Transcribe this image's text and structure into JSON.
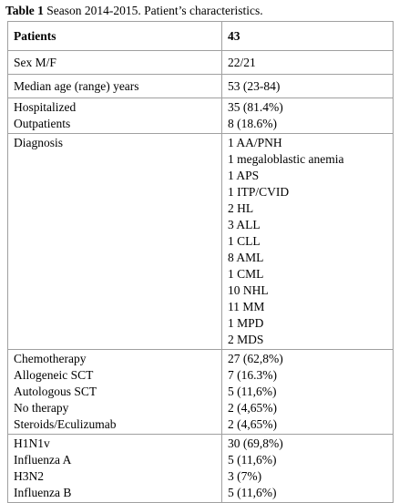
{
  "caption": {
    "label": "Table 1",
    "text": "Season 2014-2015. Patient’s characteristics."
  },
  "table": {
    "header": [
      "Patients",
      "43"
    ],
    "rows": [
      [
        [
          "Sex M/F"
        ],
        [
          "22/21"
        ]
      ],
      [
        [
          "Median age (range) years"
        ],
        [
          "53 (23-84)"
        ]
      ],
      [
        [
          "Hospitalized",
          "Outpatients"
        ],
        [
          "35 (81.4%)",
          "8 (18.6%)"
        ]
      ],
      [
        [
          "Diagnosis"
        ],
        [
          "1 AA/PNH",
          "1 megaloblastic anemia",
          "1 APS",
          "1 ITP/CVID",
          "2 HL",
          "3 ALL",
          "1 CLL",
          "8 AML",
          "1 CML",
          "10 NHL",
          "11 MM",
          "1 MPD",
          "2 MDS"
        ]
      ],
      [
        [
          "Chemotherapy",
          "Allogeneic SCT",
          "Autologous SCT",
          "No therapy",
          "Steroids/Eculizumab"
        ],
        [
          "27 (62,8%)",
          "7 (16.3%)",
          "5 (11,6%)",
          "2 (4,65%)",
          "2 (4,65%)"
        ]
      ],
      [
        [
          "H1N1v",
          "Influenza A",
          "H3N2",
          "Influenza B"
        ],
        [
          "30 (69,8%)",
          "5 (11,6%)",
          "3 (7%)",
          "5 (11,6%)"
        ]
      ]
    ]
  }
}
